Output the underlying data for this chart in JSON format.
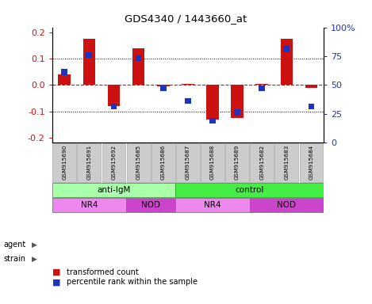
{
  "title": "GDS4340 / 1443660_at",
  "samples": [
    "GSM915690",
    "GSM915691",
    "GSM915692",
    "GSM915685",
    "GSM915686",
    "GSM915687",
    "GSM915688",
    "GSM915689",
    "GSM915682",
    "GSM915683",
    "GSM915684"
  ],
  "red_values": [
    0.04,
    0.175,
    -0.08,
    0.14,
    -0.005,
    0.005,
    -0.13,
    -0.125,
    0.005,
    0.175,
    -0.01
  ],
  "blue_percentiles": [
    60,
    75,
    30,
    72,
    46,
    35,
    18,
    25,
    46,
    80,
    30
  ],
  "ylim": [
    -0.22,
    0.22
  ],
  "ylim_right": [
    0,
    100
  ],
  "yticks_left": [
    -0.2,
    -0.1,
    0.0,
    0.1,
    0.2
  ],
  "yticks_right": [
    0,
    25,
    50,
    75,
    100
  ],
  "hlines_dotted": [
    -0.1,
    0.1
  ],
  "hline_dashed": 0.0,
  "red_color": "#cc1111",
  "blue_color": "#2233bb",
  "red_bar_width": 0.5,
  "blue_sq_size": 0.25,
  "agent_groups": [
    {
      "label": "anti-IgM",
      "start": 0,
      "end": 5,
      "color": "#aaffaa"
    },
    {
      "label": "control",
      "start": 5,
      "end": 11,
      "color": "#44ee44"
    }
  ],
  "strain_groups": [
    {
      "label": "NR4",
      "start": 0,
      "end": 3,
      "color": "#ee88ee"
    },
    {
      "label": "NOD",
      "start": 3,
      "end": 5,
      "color": "#cc44cc"
    },
    {
      "label": "NR4",
      "start": 5,
      "end": 8,
      "color": "#ee88ee"
    },
    {
      "label": "NOD",
      "start": 8,
      "end": 11,
      "color": "#cc44cc"
    }
  ],
  "agent_label": "agent",
  "strain_label": "strain",
  "legend_red": "transformed count",
  "legend_blue": "percentile rank within the sample",
  "tick_label_bg": "#cccccc",
  "zero_line_color": "#cc1111"
}
